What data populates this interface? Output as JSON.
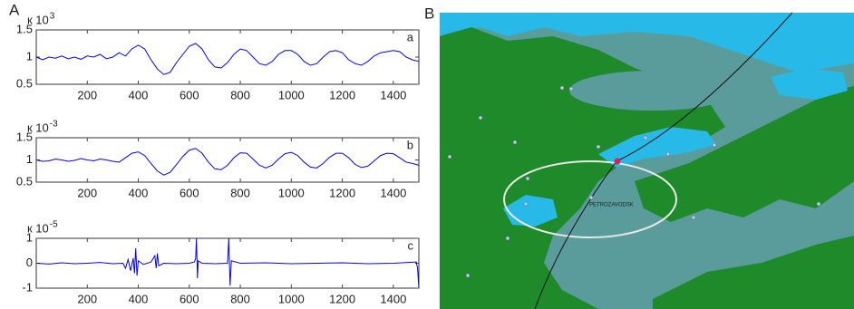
{
  "panel_labels": [
    "A",
    "B"
  ],
  "map": {
    "label": "PETROZAVODSK"
  },
  "chart_data": [
    {
      "type": "line",
      "y_label": "к 10",
      "y_label_exponent": "3",
      "annotation": "a",
      "color": "#0000ff",
      "xlim": [
        0,
        1500
      ],
      "xticks": [
        200,
        400,
        600,
        800,
        1000,
        1200,
        1400
      ],
      "ylim": [
        0.5,
        1.5
      ],
      "yticks": [
        0.5,
        1,
        1.5
      ],
      "x": [
        0,
        25,
        50,
        75,
        100,
        125,
        150,
        175,
        200,
        225,
        250,
        275,
        300,
        325,
        350,
        375,
        400,
        425,
        450,
        475,
        500,
        525,
        550,
        575,
        600,
        625,
        650,
        675,
        700,
        725,
        750,
        775,
        800,
        825,
        850,
        875,
        900,
        925,
        950,
        975,
        1000,
        1025,
        1050,
        1075,
        1100,
        1125,
        1150,
        1175,
        1200,
        1225,
        1250,
        1275,
        1300,
        1325,
        1350,
        1375,
        1400,
        1425,
        1450,
        1475,
        1500
      ],
      "values": [
        1.0,
        0.95,
        1.0,
        0.98,
        1.02,
        0.97,
        1.0,
        0.96,
        1.02,
        1.0,
        1.05,
        0.97,
        1.0,
        1.08,
        1.02,
        1.15,
        1.22,
        1.15,
        0.95,
        0.78,
        0.68,
        0.72,
        0.9,
        1.05,
        1.2,
        1.25,
        1.15,
        0.95,
        0.82,
        0.8,
        0.9,
        1.05,
        1.15,
        1.12,
        1.0,
        0.88,
        0.85,
        0.92,
        1.05,
        1.12,
        1.12,
        1.05,
        0.92,
        0.85,
        0.88,
        1.0,
        1.1,
        1.12,
        1.08,
        0.95,
        0.88,
        0.85,
        0.92,
        1.02,
        1.08,
        1.1,
        1.12,
        1.1,
        1.0,
        0.95,
        0.92
      ]
    },
    {
      "type": "line",
      "y_label": "к 10",
      "y_label_exponent": "-3",
      "annotation": "b",
      "color": "#0000ff",
      "xlim": [
        0,
        1500
      ],
      "xticks": [
        200,
        400,
        600,
        800,
        1000,
        1200,
        1400
      ],
      "ylim": [
        0.5,
        1.5
      ],
      "yticks": [
        0.5,
        1,
        1.5
      ],
      "x": [
        0,
        25,
        50,
        75,
        100,
        125,
        150,
        175,
        200,
        225,
        250,
        275,
        300,
        325,
        350,
        375,
        400,
        425,
        450,
        475,
        500,
        525,
        550,
        575,
        600,
        625,
        650,
        675,
        700,
        725,
        750,
        775,
        800,
        825,
        850,
        875,
        900,
        925,
        950,
        975,
        1000,
        1025,
        1050,
        1075,
        1100,
        1125,
        1150,
        1175,
        1200,
        1225,
        1250,
        1275,
        1300,
        1325,
        1350,
        1375,
        1400,
        1425,
        1450,
        1475,
        1500
      ],
      "values": [
        1.0,
        0.97,
        0.98,
        1.02,
        1.0,
        0.97,
        0.99,
        1.03,
        1.0,
        0.98,
        1.02,
        1.0,
        0.97,
        0.95,
        1.05,
        1.15,
        1.18,
        1.1,
        0.92,
        0.75,
        0.66,
        0.72,
        0.9,
        1.08,
        1.22,
        1.26,
        1.15,
        0.95,
        0.8,
        0.78,
        0.88,
        1.05,
        1.16,
        1.15,
        1.02,
        0.88,
        0.82,
        0.88,
        1.02,
        1.14,
        1.17,
        1.1,
        0.95,
        0.84,
        0.82,
        0.92,
        1.06,
        1.15,
        1.15,
        1.05,
        0.9,
        0.83,
        0.86,
        0.98,
        1.1,
        1.15,
        1.14,
        1.05,
        0.95,
        0.92,
        0.88
      ]
    },
    {
      "type": "line",
      "y_label": "к 10",
      "y_label_exponent": "-5",
      "annotation": "c",
      "color": "#0000ff",
      "xlim": [
        0,
        1500
      ],
      "xticks": [
        200,
        400,
        600,
        800,
        1000,
        1200,
        1400
      ],
      "ylim": [
        -1,
        1
      ],
      "yticks": [
        -1,
        0,
        1
      ],
      "x": [
        0,
        50,
        100,
        150,
        200,
        250,
        300,
        340,
        350,
        360,
        370,
        380,
        385,
        390,
        395,
        400,
        420,
        450,
        465,
        470,
        475,
        480,
        500,
        550,
        600,
        620,
        625,
        628,
        632,
        635,
        650,
        700,
        750,
        755,
        758,
        760,
        765,
        800,
        900,
        1000,
        1100,
        1200,
        1300,
        1400,
        1490,
        1495,
        1500
      ],
      "values": [
        0.0,
        -0.03,
        0.02,
        -0.02,
        0.0,
        0.03,
        -0.02,
        0.0,
        -0.2,
        0.15,
        -0.3,
        0.2,
        -0.4,
        0.6,
        -0.5,
        0.1,
        -0.05,
        0.05,
        0.3,
        -0.2,
        0.4,
        -0.1,
        0.0,
        -0.02,
        0.0,
        0.05,
        0.2,
        1.0,
        -0.6,
        0.1,
        0.0,
        -0.02,
        0.0,
        1.0,
        -0.2,
        -0.9,
        0.1,
        0.0,
        0.02,
        -0.02,
        0.0,
        0.02,
        -0.02,
        0.0,
        0.05,
        -0.2,
        -1.0
      ]
    }
  ]
}
